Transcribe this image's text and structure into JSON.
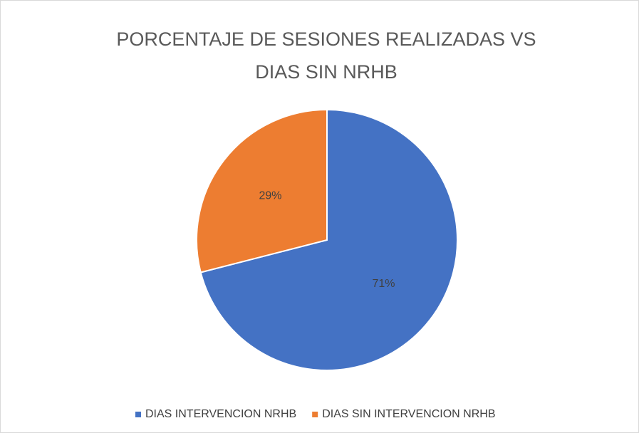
{
  "chart_data": {
    "type": "pie",
    "title": "PORCENTAJE DE SESIONES REALIZADAS VS DIAS SIN NRHB",
    "categories": [
      "DIAS INTERVENCION NRHB",
      "DIAS SIN INTERVENCION NRHB"
    ],
    "values": [
      71,
      29
    ],
    "value_labels": [
      "71%",
      "29%"
    ],
    "colors": [
      "#4472c4",
      "#ed7d31"
    ],
    "legend": "bottom"
  }
}
